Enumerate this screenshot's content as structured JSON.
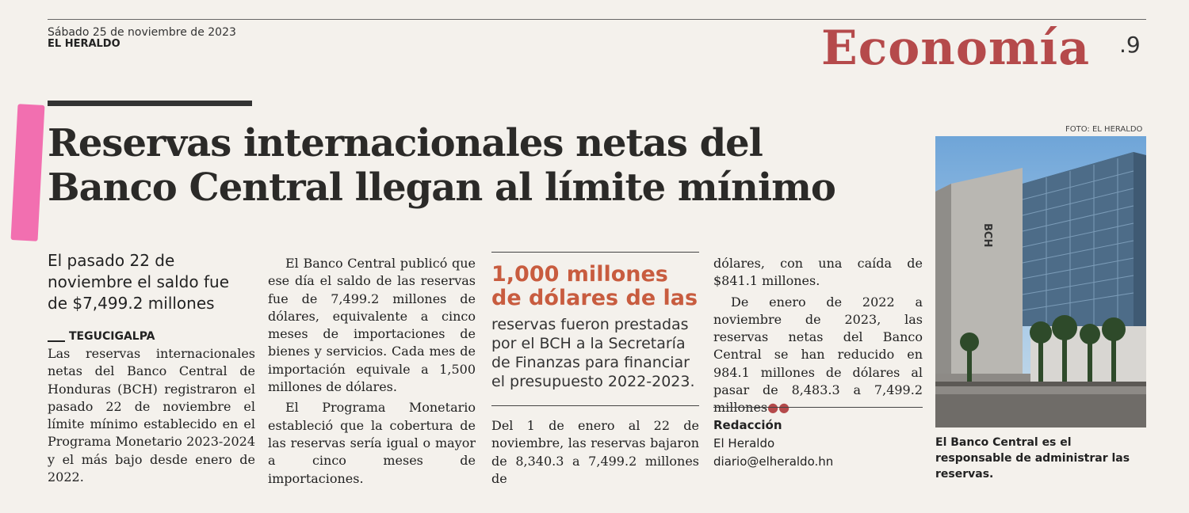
{
  "header": {
    "date": "Sábado 25 de noviembre de 2023",
    "newspaper": "EL HERALDO",
    "section": "Economía",
    "page_number": ".9"
  },
  "article": {
    "headline": "Reservas internacionales netas del Banco Central llegan al límite mínimo",
    "subheadline": "El pasado 22 de noviembre el saldo fue de $7,499.2 millones",
    "dateline": "TEGUCIGALPA",
    "col1_p1": "Las reservas internacionales netas del Banco Central de Honduras (BCH) registraron el pasado 22 de noviembre el límite mínimo establecido en el Programa Monetario 2023-2024 y el más bajo desde enero de 2022.",
    "col2_p1": "El Banco Central publicó que ese día el saldo de las reservas fue de 7,499.2 millones de dólares, equivalente a cinco meses de importaciones de bienes y servicios. Cada mes de importación equivale a 1,500 millones de dólares.",
    "col2_p2": "El Programa Monetario estableció que la cobertura de las reservas sería igual o mayor a cinco meses de importaciones.",
    "col3_p1": "Del 1 de enero al 22 de noviembre, las reservas bajaron de 8,340.3 a 7,499.2 millones de",
    "col4_p1": "dólares, con una caída de $841.1 millones.",
    "col4_p2": "De enero de 2022 a noviembre de 2023, las reservas netas del Banco Central se han reducido en 984.1 millones de dólares al pasar de 8,483.3 a 7,499.2 millones",
    "end_mark": "●●"
  },
  "pull_quote": {
    "highlight": "1,000 millones de dólares de las",
    "text": "reservas fueron prestadas por el BCH a la Secretaría de Finanzas para financiar el presupuesto 2022-2023."
  },
  "credit": {
    "role": "Redacción",
    "name": "El Heraldo",
    "email": "diario@elheraldo.hn"
  },
  "photo": {
    "credit": "FOTO: EL HERALDO",
    "sign": "BCH",
    "caption": "El Banco Central es el responsable de administrar las reservas."
  },
  "colors": {
    "section": "#b54a4b",
    "pull_quote": "#c85c3f",
    "highlighter": "#f26fb0"
  }
}
